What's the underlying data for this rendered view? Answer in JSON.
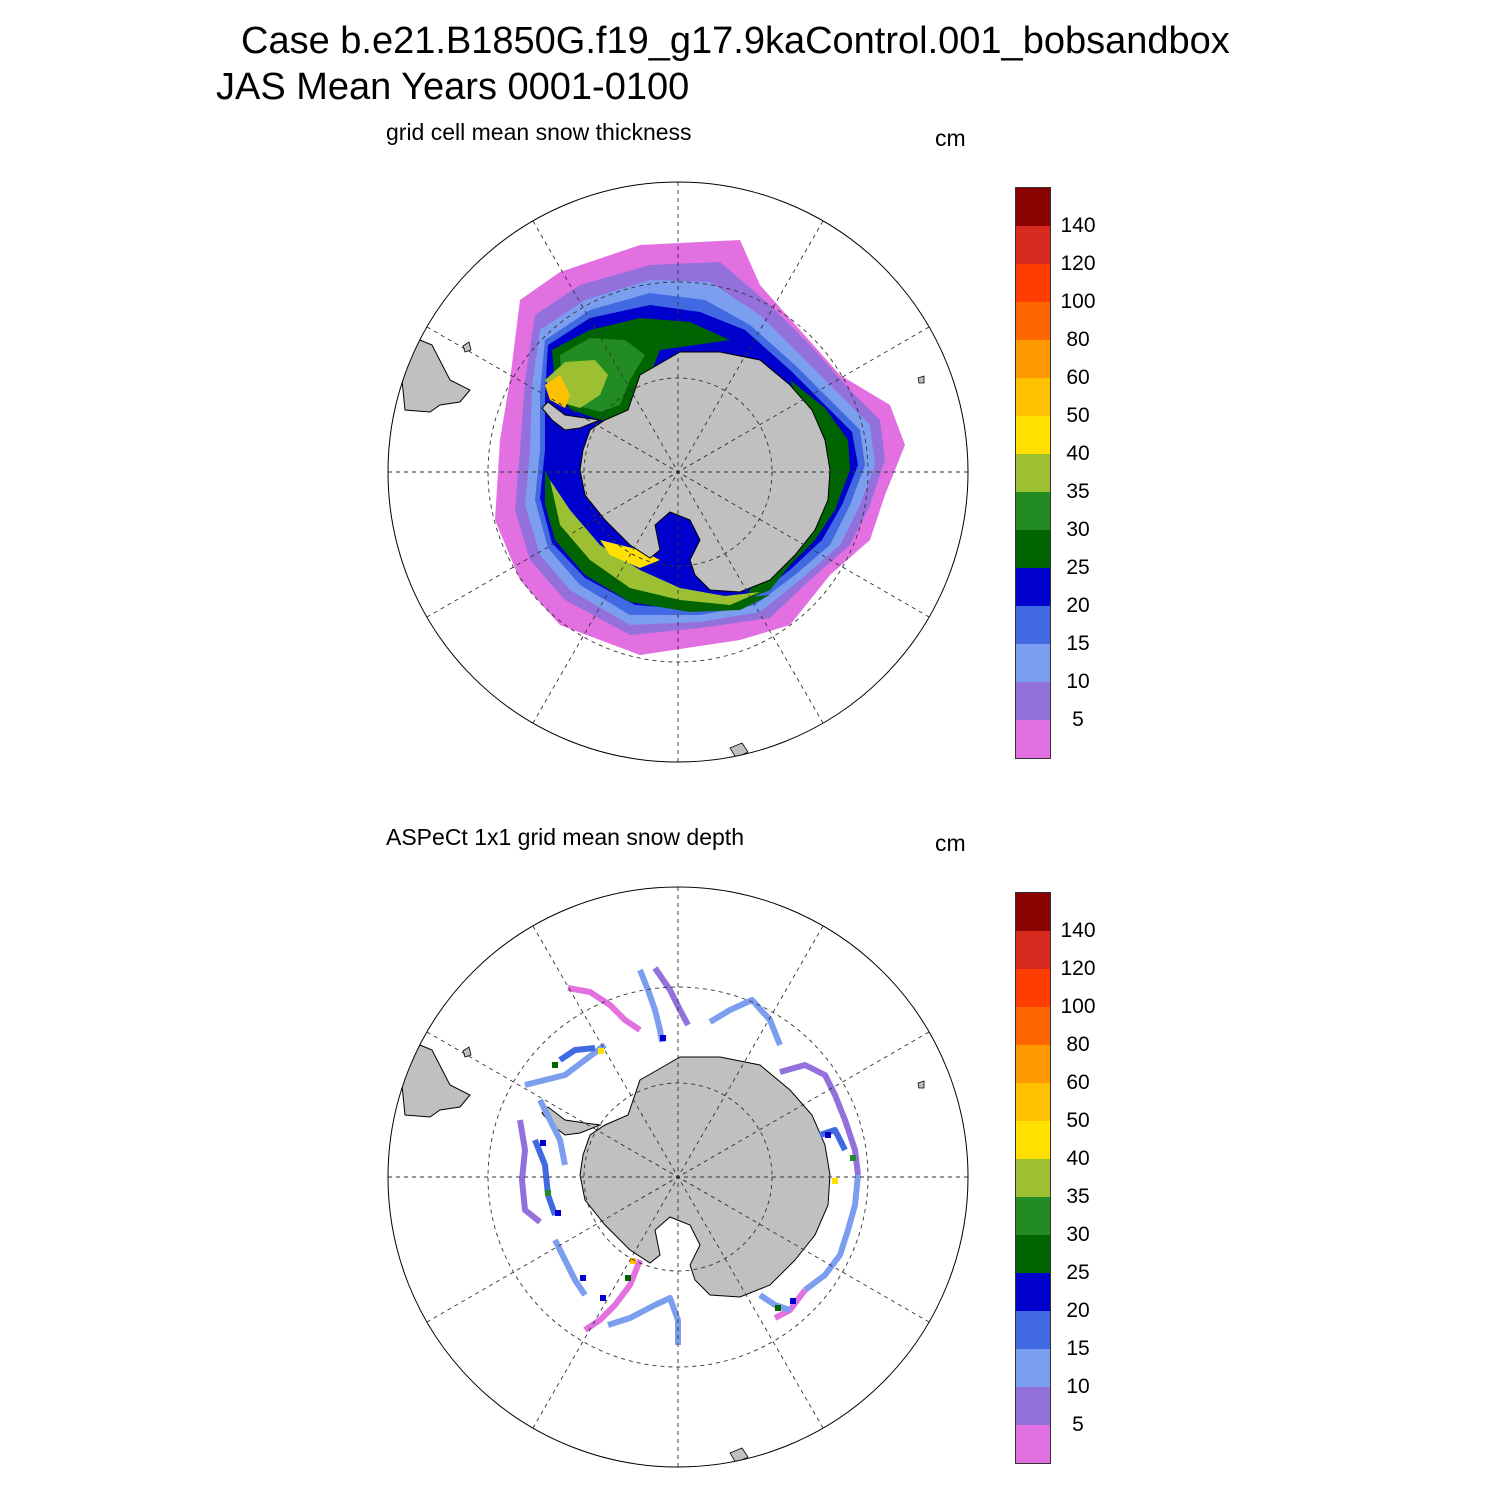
{
  "title": {
    "line1": "Case b.e21.B1850G.f19_g17.9kaControl.001_bobsandbox",
    "line2": "JAS Mean   Years 0001-0100"
  },
  "panels": [
    {
      "title": "grid cell mean snow thickness",
      "units": "cm"
    },
    {
      "title": "ASPeCt 1x1 grid mean snow depth",
      "units": "cm"
    }
  ],
  "colorbar": {
    "labels": [
      "140",
      "120",
      "100",
      "80",
      "60",
      "50",
      "40",
      "35",
      "30",
      "25",
      "20",
      "15",
      "10",
      "5"
    ],
    "colors": [
      "#8b0000",
      "#d62a1e",
      "#ff3d00",
      "#ff6600",
      "#ff9900",
      "#ffc000",
      "#ffe000",
      "#9cc031",
      "#228b22",
      "#006400",
      "#0000cd",
      "#4169e1",
      "#7b9eef",
      "#9370db",
      "#e270e0"
    ]
  },
  "map_style": {
    "land_color": "#c0c0c0",
    "coast_color": "#000000",
    "grid_style": "dashed",
    "projection": "south polar stereographic"
  }
}
